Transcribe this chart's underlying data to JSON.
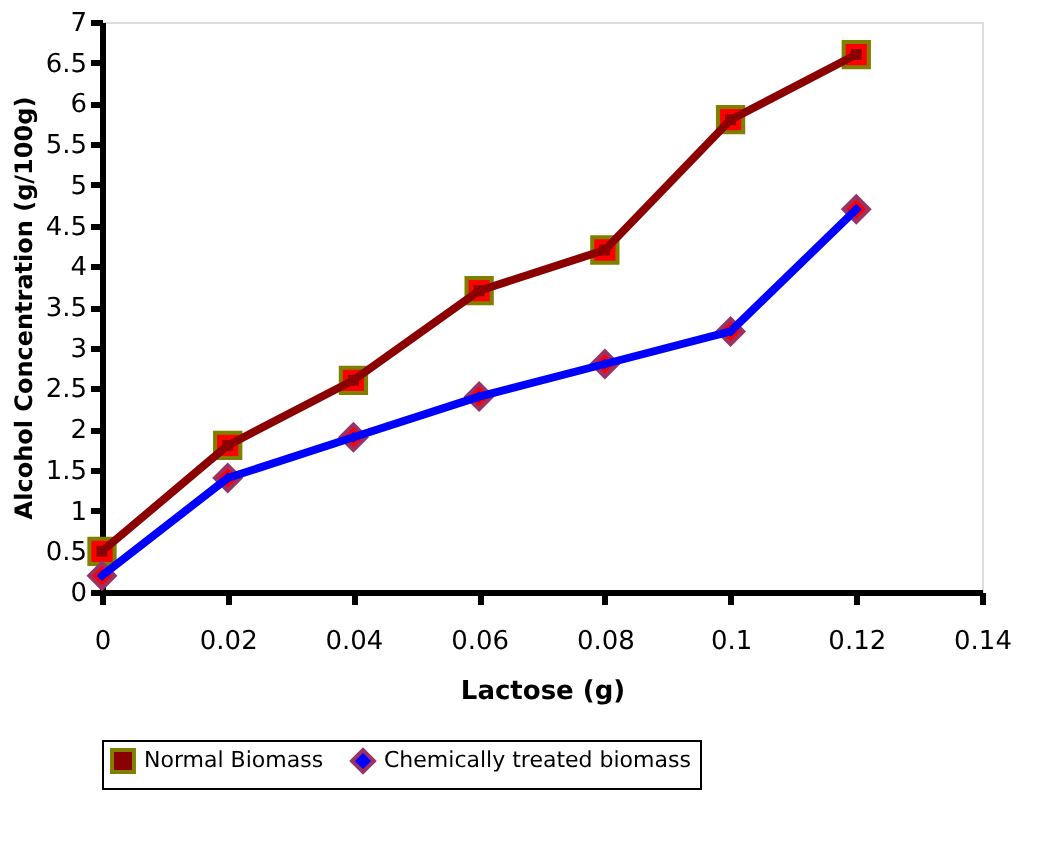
{
  "chart_data": {
    "type": "line",
    "xlabel": "Lactose  (g)",
    "ylabel": "Alcohol Concentration (g/100g)",
    "x": [
      0,
      0.02,
      0.04,
      0.06,
      0.08,
      0.1,
      0.12
    ],
    "series": [
      {
        "name": "Normal Biomass",
        "color": "#8b0000",
        "marker": "square",
        "values": [
          0.5,
          1.8,
          2.6,
          3.7,
          4.2,
          5.8,
          6.6
        ]
      },
      {
        "name": "Chemically treated biomass",
        "color": "#0000ff",
        "marker": "diamond",
        "values": [
          0.2,
          1.4,
          1.9,
          2.4,
          2.8,
          3.2,
          4.7
        ]
      }
    ],
    "xlim": [
      0,
      0.14
    ],
    "xticks": [
      0,
      0.02,
      0.04,
      0.06,
      0.08,
      0.1,
      0.12,
      0.14
    ],
    "ylim": [
      0,
      7
    ],
    "yticks": [
      0,
      0.5,
      1,
      1.5,
      2,
      2.5,
      3,
      3.5,
      4,
      4.5,
      5,
      5.5,
      6,
      6.5,
      7
    ],
    "grid": false,
    "legend": "bottom",
    "line_style": "solid"
  }
}
